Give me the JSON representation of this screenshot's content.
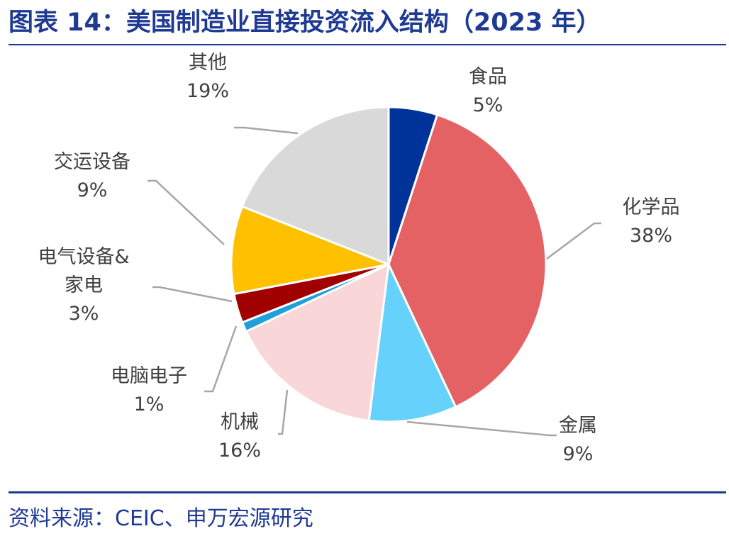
{
  "title": "图表 14：美国制造业直接投资流入结构（2023 年）",
  "source": "资料来源：CEIC、申万宏源研究",
  "chart_data": {
    "type": "pie",
    "categories": [
      "食品",
      "化学品",
      "金属",
      "机械",
      "电脑电子",
      "电气设备&家电",
      "交运设备",
      "其他"
    ],
    "values": [
      5,
      38,
      9,
      16,
      1,
      3,
      9,
      19
    ],
    "labels": [
      {
        "name_lines": [
          "食品"
        ],
        "pct": "5%"
      },
      {
        "name_lines": [
          "化学品"
        ],
        "pct": "38%"
      },
      {
        "name_lines": [
          "金属"
        ],
        "pct": "9%"
      },
      {
        "name_lines": [
          "机械"
        ],
        "pct": "16%"
      },
      {
        "name_lines": [
          "电脑电子"
        ],
        "pct": "1%"
      },
      {
        "name_lines": [
          "电气设备&",
          "家电"
        ],
        "pct": "3%"
      },
      {
        "name_lines": [
          "交运设备"
        ],
        "pct": "9%"
      },
      {
        "name_lines": [
          "其他"
        ],
        "pct": "19%"
      }
    ],
    "colors": [
      "#003399",
      "#e46264",
      "#66d2fb",
      "#f9d6d7",
      "#1ea0dc",
      "#a10000",
      "#ffc000",
      "#d9d9d9"
    ],
    "start": "12 o'clock, clockwise",
    "legend": "none (leader-line labels)"
  }
}
